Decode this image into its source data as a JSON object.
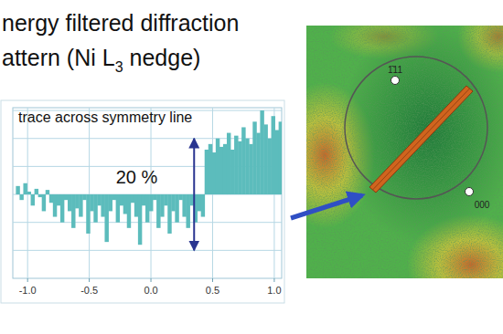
{
  "slide": {
    "title": {
      "line1": "nergy filtered diffraction",
      "line2_before": "attern (Ni L",
      "line2_sub": "3",
      "line2_after": " nedge)"
    }
  },
  "pattern": {
    "spots": [
      {
        "label": "1̄11"
      },
      {
        "label": "000"
      }
    ]
  },
  "chart_data": {
    "type": "bar",
    "title": "trace across symmetry line",
    "color": "#5cbcbc",
    "grid": true,
    "tick_labels": "x",
    "x": [
      -1.08,
      -1.05,
      -1.02,
      -0.99,
      -0.96,
      -0.93,
      -0.9,
      -0.87,
      -0.84,
      -0.81,
      -0.78,
      -0.75,
      -0.72,
      -0.69,
      -0.66,
      -0.63,
      -0.6,
      -0.57,
      -0.54,
      -0.51,
      -0.48,
      -0.45,
      -0.42,
      -0.39,
      -0.36,
      -0.33,
      -0.3,
      -0.27,
      -0.24,
      -0.21,
      -0.18,
      -0.15,
      -0.12,
      -0.09,
      -0.06,
      -0.03,
      0,
      0.03,
      0.06,
      0.09,
      0.12,
      0.15,
      0.18,
      0.21,
      0.24,
      0.27,
      0.3,
      0.33,
      0.36,
      0.39,
      0.42,
      0.45,
      0.48,
      0.51,
      0.54,
      0.57,
      0.6,
      0.63,
      0.66,
      0.69,
      0.72,
      0.75,
      0.78,
      0.81,
      0.84,
      0.87,
      0.9,
      0.93,
      0.96,
      0.99,
      1.02,
      1.05
    ],
    "values": [
      1.5,
      -1,
      2,
      0.5,
      -2,
      1,
      -0.5,
      -3,
      0.8,
      -1.5,
      -4,
      -2,
      -5,
      -1,
      -3,
      -6,
      -2.5,
      -4,
      -1,
      -7,
      -3,
      -5,
      -2,
      -4,
      -8.5,
      -3,
      -1,
      -5,
      -2,
      -3.5,
      -6,
      -1.5,
      -4,
      -9,
      -2,
      -5,
      -3,
      -1,
      -6,
      -4,
      -2,
      -7,
      -3,
      -5,
      -1,
      -4,
      -6,
      -2,
      -5,
      -3,
      -4,
      8,
      9,
      7.5,
      10,
      8.5,
      9,
      11,
      8,
      10.5,
      9.5,
      12,
      10,
      9,
      13,
      11,
      15,
      12.5,
      10,
      14,
      11.5,
      13
    ],
    "xlim": [
      -1.12,
      1.06
    ],
    "xticks": [
      {
        "value": -1,
        "label": "-1.0"
      },
      -0.5,
      {
        "value": 0,
        "label": "0.0"
      },
      0.5,
      {
        "value": 1,
        "label": "1.0"
      }
    ],
    "ylim": [
      -15,
      15.5
    ],
    "yticks": [
      -10,
      -5,
      0,
      5,
      10,
      15
    ],
    "annotations": [
      {
        "text": "20 %",
        "from": -10,
        "to": 10
      }
    ]
  }
}
